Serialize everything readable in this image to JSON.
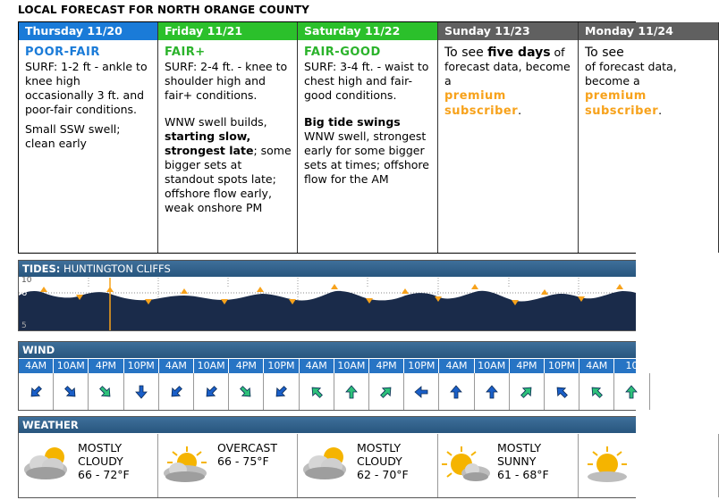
{
  "page_title": "LOCAL FORECAST FOR NORTH ORANGE COUNTY",
  "days": [
    {
      "header": "Thursday 11/20",
      "color": "#1a7bd8",
      "rating": "POOR-FAIR",
      "rating_color": "#1a7bd8",
      "surf": "SURF: 1-2 ft - ankle to knee high occasionally 3 ft. and poor-fair conditions.",
      "note_plain": "Small SSW swell; clean early"
    },
    {
      "header": "Friday 11/21",
      "color": "#2bc02b",
      "rating": "FAIR+",
      "rating_color": "#2bb32b",
      "surf": "SURF: 2-4 ft. - knee to shoulder high and fair+ conditions.",
      "note_a": "WNW swell builds, ",
      "note_bold": "starting slow, strongest late",
      "note_b": "; some bigger sets at standout spots late; offshore flow early, weak onshore PM"
    },
    {
      "header": "Saturday 11/22",
      "color": "#2bc02b",
      "rating": "FAIR-GOOD",
      "rating_color": "#2bb32b",
      "surf": "SURF: 3-4 ft. - waist to chest high and fair-good conditions.",
      "note_bold": "Big tide swings",
      "note_b": "WNW swell, strongest early for some bigger sets at times; offshore flow for the AM"
    },
    {
      "header": "Sunday 11/23",
      "color": "#606060",
      "promo_a": "To see ",
      "promo_bold": "five days",
      "promo_b": " of forecast data, become a",
      "premium": "premium subscriber",
      "promo_end": "."
    },
    {
      "header": "Monday 11/24",
      "color": "#606060",
      "promo_a": "To see ",
      "promo_b": "of forecast data, become a",
      "premium": "premium subscriber",
      "promo_end": "."
    }
  ],
  "tides": {
    "label_bold": "TIDES:",
    "label": " HUNTINGTON CLIFFS",
    "ticks": [
      "10",
      "6",
      "5"
    ],
    "color": "#1a2b4a"
  },
  "wind": {
    "label": "WIND",
    "times": [
      "4AM",
      "10AM",
      "4PM",
      "10PM",
      "4AM",
      "10AM",
      "4PM",
      "10PM",
      "4AM",
      "10AM",
      "4PM",
      "10PM",
      "4AM",
      "10AM",
      "4PM",
      "10PM",
      "4AM",
      "10"
    ],
    "arrows": [
      {
        "dir": "SW",
        "color": "#1a5fc8"
      },
      {
        "dir": "SE",
        "color": "#1a5fc8"
      },
      {
        "dir": "SE",
        "color": "#2ec07a"
      },
      {
        "dir": "S",
        "color": "#1a5fc8"
      },
      {
        "dir": "SW",
        "color": "#1a5fc8"
      },
      {
        "dir": "SW",
        "color": "#1a5fc8"
      },
      {
        "dir": "SE",
        "color": "#2ec07a"
      },
      {
        "dir": "SW",
        "color": "#1a5fc8"
      },
      {
        "dir": "NW",
        "color": "#2ec07a"
      },
      {
        "dir": "N",
        "color": "#2ec07a"
      },
      {
        "dir": "NE",
        "color": "#2ec07a"
      },
      {
        "dir": "W",
        "color": "#1a5fc8"
      },
      {
        "dir": "N",
        "color": "#1a5fc8"
      },
      {
        "dir": "N",
        "color": "#1a5fc8"
      },
      {
        "dir": "NE",
        "color": "#2ec07a"
      },
      {
        "dir": "NW",
        "color": "#1a5fc8"
      },
      {
        "dir": "NW",
        "color": "#2ec07a"
      },
      {
        "dir": "N",
        "color": "#2ec07a"
      }
    ]
  },
  "weather": {
    "label": "WEATHER",
    "items": [
      {
        "l1": "MOSTLY",
        "l2": "CLOUDY",
        "l3": "66 - 72°F",
        "icon": "mostly-cloudy-icon"
      },
      {
        "l1": "OVERCAST",
        "l2": "66 - 75°F",
        "l3": "",
        "icon": "overcast-icon"
      },
      {
        "l1": "MOSTLY",
        "l2": "CLOUDY",
        "l3": "62 - 70°F",
        "icon": "mostly-cloudy-icon"
      },
      {
        "l1": "MOSTLY",
        "l2": "SUNNY",
        "l3": "61 - 68°F",
        "icon": "mostly-sunny-icon"
      },
      {
        "l1": "",
        "l2": "",
        "l3": "",
        "icon": "sunny-icon"
      }
    ]
  }
}
